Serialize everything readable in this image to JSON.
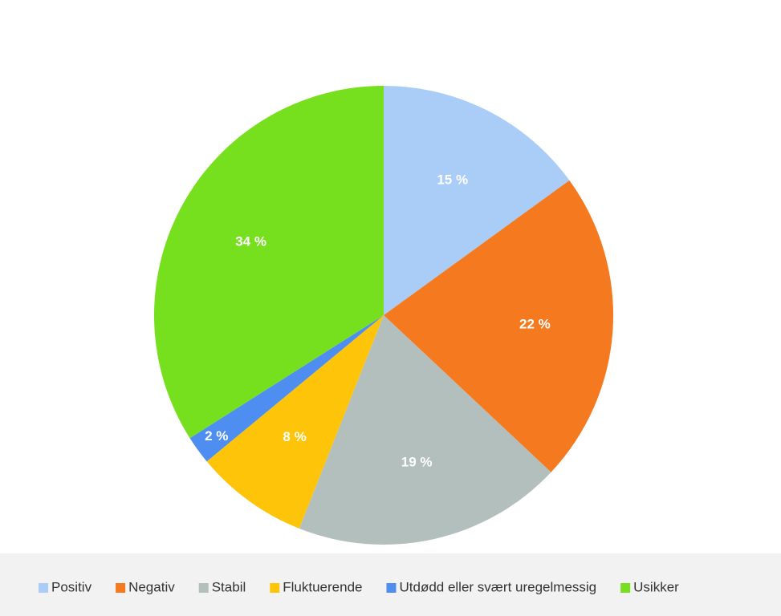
{
  "chart_data": {
    "type": "pie",
    "categories": [
      "Positiv",
      "Negativ",
      "Stabil",
      "Fluktuerende",
      "Utdødd eller svært uregelmessig",
      "Usikker"
    ],
    "values": [
      15,
      22,
      19,
      8,
      2,
      34
    ],
    "value_labels": [
      "15 %",
      "22 %",
      "19 %",
      "8 %",
      "2 %",
      "34 %"
    ],
    "colors": [
      "#a9cdf7",
      "#f5791e",
      "#b3bfbc",
      "#fdc40a",
      "#4e8ef0",
      "#77e01e"
    ],
    "legend": "bottom"
  }
}
